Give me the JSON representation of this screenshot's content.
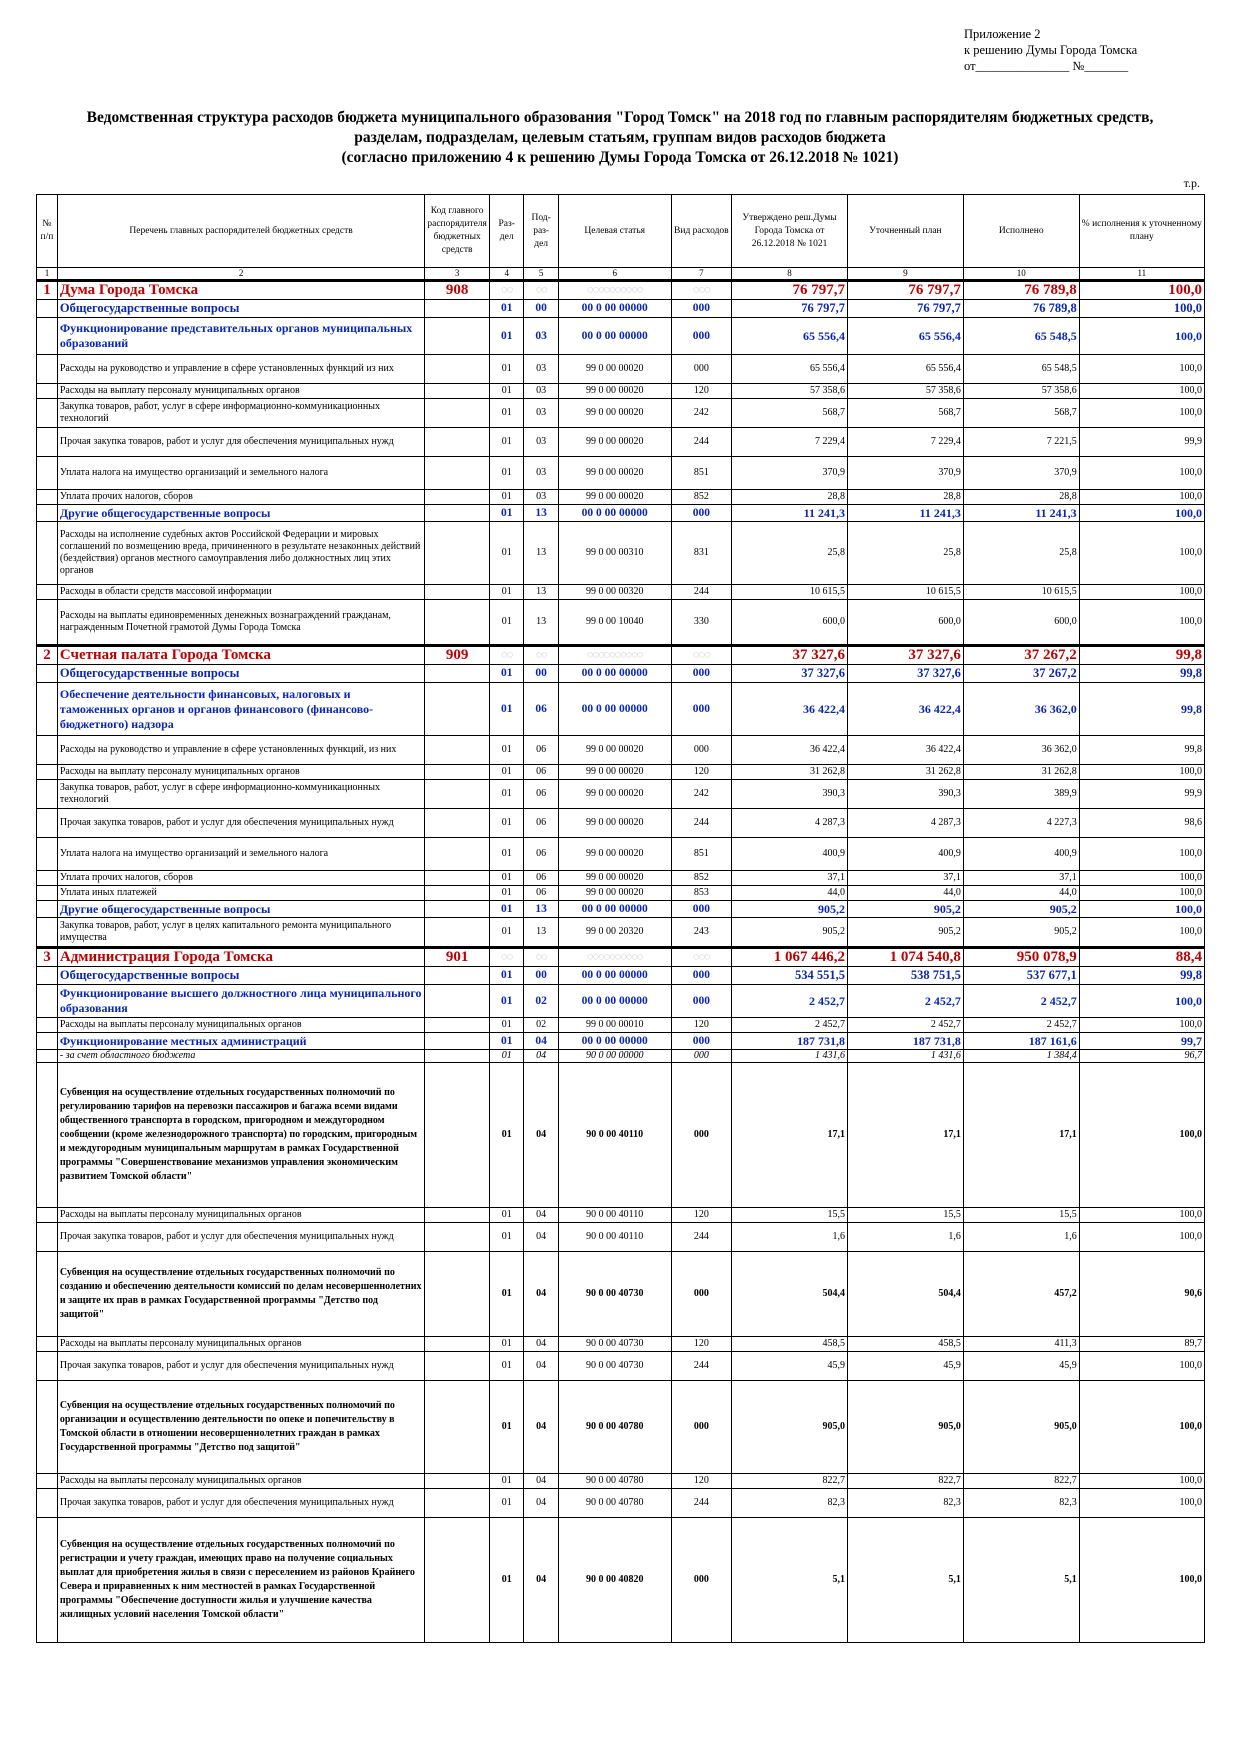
{
  "annex": {
    "line1": "Приложение 2",
    "line2": "к решению Думы Города Томска",
    "line3": "от_______________ №_______"
  },
  "title": {
    "line1": "Ведомственная структура расходов бюджета муниципального образования \"Город Томск\" на 2018 год по главным распорядителям бюджетных средств,",
    "line2": "разделам, подразделам, целевым статьям, группам видов расходов бюджета",
    "line3": "(согласно приложению 4 к решению Думы Города Томска от 26.12.2018 № 1021)"
  },
  "unit": "т.р.",
  "header": {
    "num": "№ п/п",
    "name": "Перечень главных распорядителей бюджетных средств",
    "code": "Код главного распорядителя бюджетных средств",
    "razdel": "Раз-дел",
    "podrazdel": "Под-раз-дел",
    "cs": "Целевая статья",
    "vr": "Вид расходов",
    "approved": "Утверждено реш.Думы Города Томска от 26.12.2018 № 1021",
    "plan": "Уточненный план",
    "exec": "Исполнено",
    "pct": "% исполнения к уточненному плану"
  },
  "colnums": [
    "1",
    "2",
    "3",
    "4",
    "5",
    "6",
    "7",
    "8",
    "9",
    "10",
    "11"
  ],
  "rows": [
    {
      "lvl": "l1",
      "n": "1",
      "name": "Дума Города Томска",
      "code": "908",
      "rz": "◌◌",
      "pr": "◌◌",
      "cs": "◌◌◌◌◌◌◌◌◌◌",
      "vr": "◌◌◌",
      "a": "76 797,7",
      "p": "76 797,7",
      "e": "76 789,8",
      "pct": "100,0"
    },
    {
      "lvl": "l2",
      "name": "Общегосударственные вопросы",
      "rz": "01",
      "pr": "00",
      "cs": "00 0 00 00000",
      "vr": "000",
      "a": "76 797,7",
      "p": "76 797,7",
      "e": "76 789,8",
      "pct": "100,0"
    },
    {
      "lvl": "l3",
      "h": 36,
      "name": "Функционирование представительных органов муниципальных образований",
      "rz": "01",
      "pr": "03",
      "cs": "00 0 00 00000",
      "vr": "000",
      "a": "65 556,4",
      "p": "65 556,4",
      "e": "65 548,5",
      "pct": "100,0"
    },
    {
      "lvl": "n",
      "h": 28,
      "name": "Расходы на руководство и управление в сфере установленных функций из них",
      "rz": "01",
      "pr": "03",
      "cs": "99 0 00 00020",
      "vr": "000",
      "a": "65 556,4",
      "p": "65 556,4",
      "e": "65 548,5",
      "pct": "100,0"
    },
    {
      "lvl": "n",
      "name": "Расходы на выплату персоналу муниципальных органов",
      "rz": "01",
      "pr": "03",
      "cs": "99 0 00 00020",
      "vr": "120",
      "a": "57 358,6",
      "p": "57 358,6",
      "e": "57 358,6",
      "pct": "100,0"
    },
    {
      "lvl": "n",
      "h": 28,
      "name": "Закупка товаров, работ, услуг в сфере информационно-коммуникационных технологий",
      "rz": "01",
      "pr": "03",
      "cs": "99 0 00 00020",
      "vr": "242",
      "a": "568,7",
      "p": "568,7",
      "e": "568,7",
      "pct": "100,0"
    },
    {
      "lvl": "n",
      "h": 28,
      "name": "Прочая закупка товаров, работ и услуг для обеспечения муниципальных нужд",
      "rz": "01",
      "pr": "03",
      "cs": "99 0 00 00020",
      "vr": "244",
      "a": "7 229,4",
      "p": "7 229,4",
      "e": "7 221,5",
      "pct": "99,9"
    },
    {
      "lvl": "n",
      "h": 32,
      "name": "Уплата налога на имущество организаций и земельного налога",
      "rz": "01",
      "pr": "03",
      "cs": "99 0 00 00020",
      "vr": "851",
      "a": "370,9",
      "p": "370,9",
      "e": "370,9",
      "pct": "100,0"
    },
    {
      "lvl": "n",
      "name": "Уплата прочих налогов, сборов",
      "rz": "01",
      "pr": "03",
      "cs": "99 0 00 00020",
      "vr": "852",
      "a": "28,8",
      "p": "28,8",
      "e": "28,8",
      "pct": "100,0"
    },
    {
      "lvl": "l3",
      "name": "Другие общегосударственные вопросы",
      "rz": "01",
      "pr": "13",
      "cs": "00 0 00 00000",
      "vr": "000",
      "a": "11 241,3",
      "p": "11 241,3",
      "e": "11 241,3",
      "pct": "100,0"
    },
    {
      "lvl": "n",
      "h": 62,
      "name": "Расходы на исполнение судебных актов Российской Федерации и мировых соглашений по возмещению вреда, причиненного в результате незаконных действий (бездействия) органов местного самоуправления либо должностных лиц этих органов",
      "rz": "01",
      "pr": "13",
      "cs": "99 0 00 00310",
      "vr": "831",
      "a": "25,8",
      "p": "25,8",
      "e": "25,8",
      "pct": "100,0"
    },
    {
      "lvl": "n",
      "name": "Расходы в области средств массовой информации",
      "rz": "01",
      "pr": "13",
      "cs": "99 0 00 00320",
      "vr": "244",
      "a": "10 615,5",
      "p": "10 615,5",
      "e": "10 615,5",
      "pct": "100,0"
    },
    {
      "lvl": "n",
      "h": 44,
      "name": "Расходы на выплаты единовременных денежных вознаграждений гражданам, награжденным Почетной грамотой Думы Города Томска",
      "rz": "01",
      "pr": "13",
      "cs": "99 0 00 10040",
      "vr": "330",
      "a": "600,0",
      "p": "600,0",
      "e": "600,0",
      "pct": "100,0"
    },
    {
      "lvl": "l1",
      "n": "2",
      "name": "Счетная палата Города Томска",
      "code": "909",
      "rz": "◌◌",
      "pr": "◌◌",
      "cs": "◌◌◌◌◌◌◌◌◌◌",
      "vr": "◌◌◌",
      "a": "37 327,6",
      "p": "37 327,6",
      "e": "37 267,2",
      "pct": "99,8"
    },
    {
      "lvl": "l2",
      "name": "Общегосударственные вопросы",
      "rz": "01",
      "pr": "00",
      "cs": "00 0 00 00000",
      "vr": "000",
      "a": "37 327,6",
      "p": "37 327,6",
      "e": "37 267,2",
      "pct": "99,8"
    },
    {
      "lvl": "l3",
      "h": 52,
      "name": "Обеспечение деятельности финансовых, налоговых и таможенных органов и органов финансового (финансово-бюджетного) надзора",
      "rz": "01",
      "pr": "06",
      "cs": "00 0 00 00000",
      "vr": "000",
      "a": "36 422,4",
      "p": "36 422,4",
      "e": "36 362,0",
      "pct": "99,8"
    },
    {
      "lvl": "n",
      "h": 28,
      "name": "Расходы на руководство и управление в сфере установленных функций, из них",
      "rz": "01",
      "pr": "06",
      "cs": "99 0 00 00020",
      "vr": "000",
      "a": "36 422,4",
      "p": "36 422,4",
      "e": "36 362,0",
      "pct": "99,8"
    },
    {
      "lvl": "n",
      "name": "Расходы на выплату персоналу муниципальных органов",
      "rz": "01",
      "pr": "06",
      "cs": "99 0 00 00020",
      "vr": "120",
      "a": "31 262,8",
      "p": "31 262,8",
      "e": "31 262,8",
      "pct": "100,0"
    },
    {
      "lvl": "n",
      "h": 28,
      "name": "Закупка товаров, работ, услуг в сфере информационно-коммуникационных технологий",
      "rz": "01",
      "pr": "06",
      "cs": "99 0 00 00020",
      "vr": "242",
      "a": "390,3",
      "p": "390,3",
      "e": "389,9",
      "pct": "99,9"
    },
    {
      "lvl": "n",
      "h": 28,
      "name": "Прочая закупка товаров, работ и услуг для обеспечения муниципальных нужд",
      "rz": "01",
      "pr": "06",
      "cs": "99 0 00 00020",
      "vr": "244",
      "a": "4 287,3",
      "p": "4 287,3",
      "e": "4 227,3",
      "pct": "98,6"
    },
    {
      "lvl": "n",
      "h": 32,
      "name": "Уплата налога на имущество организаций и земельного налога",
      "rz": "01",
      "pr": "06",
      "cs": "99 0 00 00020",
      "vr": "851",
      "a": "400,9",
      "p": "400,9",
      "e": "400,9",
      "pct": "100,0"
    },
    {
      "lvl": "n",
      "name": "Уплата прочих налогов, сборов",
      "rz": "01",
      "pr": "06",
      "cs": "99 0 00 00020",
      "vr": "852",
      "a": "37,1",
      "p": "37,1",
      "e": "37,1",
      "pct": "100,0"
    },
    {
      "lvl": "n",
      "name": "Уплата иных платежей",
      "rz": "01",
      "pr": "06",
      "cs": "99 0 00 00020",
      "vr": "853",
      "a": "44,0",
      "p": "44,0",
      "e": "44,0",
      "pct": "100,0"
    },
    {
      "lvl": "l3",
      "name": "Другие общегосударственные вопросы",
      "rz": "01",
      "pr": "13",
      "cs": "00 0 00 00000",
      "vr": "000",
      "a": "905,2",
      "p": "905,2",
      "e": "905,2",
      "pct": "100,0"
    },
    {
      "lvl": "n",
      "h": 28,
      "name": "Закупка товаров, работ, услуг в целях капитального ремонта муниципального имущества",
      "rz": "01",
      "pr": "13",
      "cs": "99 0 00 20320",
      "vr": "243",
      "a": "905,2",
      "p": "905,2",
      "e": "905,2",
      "pct": "100,0"
    },
    {
      "lvl": "l1",
      "n": "3",
      "name": "Администрация Города Томска",
      "code": "901",
      "rz": "◌◌",
      "pr": "◌◌",
      "cs": "◌◌◌◌◌◌◌◌◌◌",
      "vr": "◌◌◌",
      "a": "1 067 446,2",
      "p": "1 074 540,8",
      "e": "950 078,9",
      "pct": "88,4"
    },
    {
      "lvl": "l2",
      "name": "Общегосударственные вопросы",
      "rz": "01",
      "pr": "00",
      "cs": "00 0 00 00000",
      "vr": "000",
      "a": "534 551,5",
      "p": "538 751,5",
      "e": "537 677,1",
      "pct": "99,8"
    },
    {
      "lvl": "l3",
      "h": 32,
      "name": "Функционирование высшего должностного лица муниципального образования",
      "rz": "01",
      "pr": "02",
      "cs": "00 0 00 00000",
      "vr": "000",
      "a": "2 452,7",
      "p": "2 452,7",
      "e": "2 452,7",
      "pct": "100,0"
    },
    {
      "lvl": "n",
      "name": "Расходы на выплаты персоналу муниципальных органов",
      "rz": "01",
      "pr": "02",
      "cs": "99 0 00 00010",
      "vr": "120",
      "a": "2 452,7",
      "p": "2 452,7",
      "e": "2 452,7",
      "pct": "100,0"
    },
    {
      "lvl": "l3",
      "name": "Функционирование местных администраций",
      "rz": "01",
      "pr": "04",
      "cs": "00 0 00 00000",
      "vr": "000",
      "a": "187 731,8",
      "p": "187 731,8",
      "e": "187 161,6",
      "pct": "99,7"
    },
    {
      "lvl": "it",
      "name": "- за счет областного бюджета",
      "rz": "01",
      "pr": "04",
      "cs": "90 0 00 00000",
      "vr": "000",
      "a": "1 431,6",
      "p": "1 431,6",
      "e": "1 384,4",
      "pct": "96,7"
    },
    {
      "lvl": "sb",
      "h": 144,
      "name": "Субвенция на осуществление отдельных государственных полномочий по регулированию тарифов на перевозки пассажиров и багажа всеми видами общественного транспорта в городском, пригородном и междугородном сообщении (кроме железнодорожного транспорта) по городским, пригородным и междугородным муниципальным маршрутам в рамках Государственной программы \"Совершенствование механизмов управления экономическим развитием Томской области\"",
      "rz": "01",
      "pr": "04",
      "cs": "90 0 00 40110",
      "vr": "000",
      "a": "17,1",
      "p": "17,1",
      "e": "17,1",
      "pct": "100,0"
    },
    {
      "lvl": "n",
      "name": "Расходы на выплаты персоналу муниципальных органов",
      "rz": "01",
      "pr": "04",
      "cs": "90 0 00 40110",
      "vr": "120",
      "a": "15,5",
      "p": "15,5",
      "e": "15,5",
      "pct": "100,0"
    },
    {
      "lvl": "n",
      "h": 28,
      "name": "Прочая закупка товаров, работ и услуг для обеспечения муниципальных нужд",
      "rz": "01",
      "pr": "04",
      "cs": "90 0 00 40110",
      "vr": "244",
      "a": "1,6",
      "p": "1,6",
      "e": "1,6",
      "pct": "100,0"
    },
    {
      "lvl": "sb",
      "h": 84,
      "name": "Субвенция на осуществление отдельных государственных полномочий по созданию и обеспечению деятельности комиссий по делам несовершеннолетних и защите их прав в рамках Государственной программы \"Детство под защитой\"",
      "rz": "01",
      "pr": "04",
      "cs": "90 0 00 40730",
      "vr": "000",
      "a": "504,4",
      "p": "504,4",
      "e": "457,2",
      "pct": "90,6"
    },
    {
      "lvl": "n",
      "name": "Расходы на выплаты персоналу муниципальных органов",
      "rz": "01",
      "pr": "04",
      "cs": "90 0 00 40730",
      "vr": "120",
      "a": "458,5",
      "p": "458,5",
      "e": "411,3",
      "pct": "89,7"
    },
    {
      "lvl": "n",
      "h": 28,
      "name": "Прочая закупка товаров, работ и услуг для обеспечения муниципальных нужд",
      "rz": "01",
      "pr": "04",
      "cs": "90 0 00 40730",
      "vr": "244",
      "a": "45,9",
      "p": "45,9",
      "e": "45,9",
      "pct": "100,0"
    },
    {
      "lvl": "sb",
      "h": 92,
      "name": "Субвенция на осуществление отдельных государственных полномочий по организации и осуществлению деятельности по опеке и попечительству в Томской области в отношении несовершеннолетних граждан в рамках Государственной программы \"Детство под защитой\"",
      "rz": "01",
      "pr": "04",
      "cs": "90 0 00 40780",
      "vr": "000",
      "a": "905,0",
      "p": "905,0",
      "e": "905,0",
      "pct": "100,0"
    },
    {
      "lvl": "n",
      "name": "Расходы на выплаты персоналу муниципальных органов",
      "rz": "01",
      "pr": "04",
      "cs": "90 0 00 40780",
      "vr": "120",
      "a": "822,7",
      "p": "822,7",
      "e": "822,7",
      "pct": "100,0"
    },
    {
      "lvl": "n",
      "h": 28,
      "name": "Прочая закупка товаров, работ и услуг для обеспечения муниципальных нужд",
      "rz": "01",
      "pr": "04",
      "cs": "90 0 00 40780",
      "vr": "244",
      "a": "82,3",
      "p": "82,3",
      "e": "82,3",
      "pct": "100,0"
    },
    {
      "lvl": "sb",
      "h": 124,
      "name": "Субвенция на осуществление отдельных государственных полномочий по регистрации и учету граждан, имеющих право на получение социальных выплат для приобретения жилья в связи с переселением из районов Крайнего Севера и приравненных к ним местностей в рамках Государственной программы \"Обеспечение доступности жилья и улучшение качества жилищных условий населения Томской области\"",
      "rz": "01",
      "pr": "04",
      "cs": "90 0 00 40820",
      "vr": "000",
      "a": "5,1",
      "p": "5,1",
      "e": "5,1",
      "pct": "100,0"
    }
  ]
}
